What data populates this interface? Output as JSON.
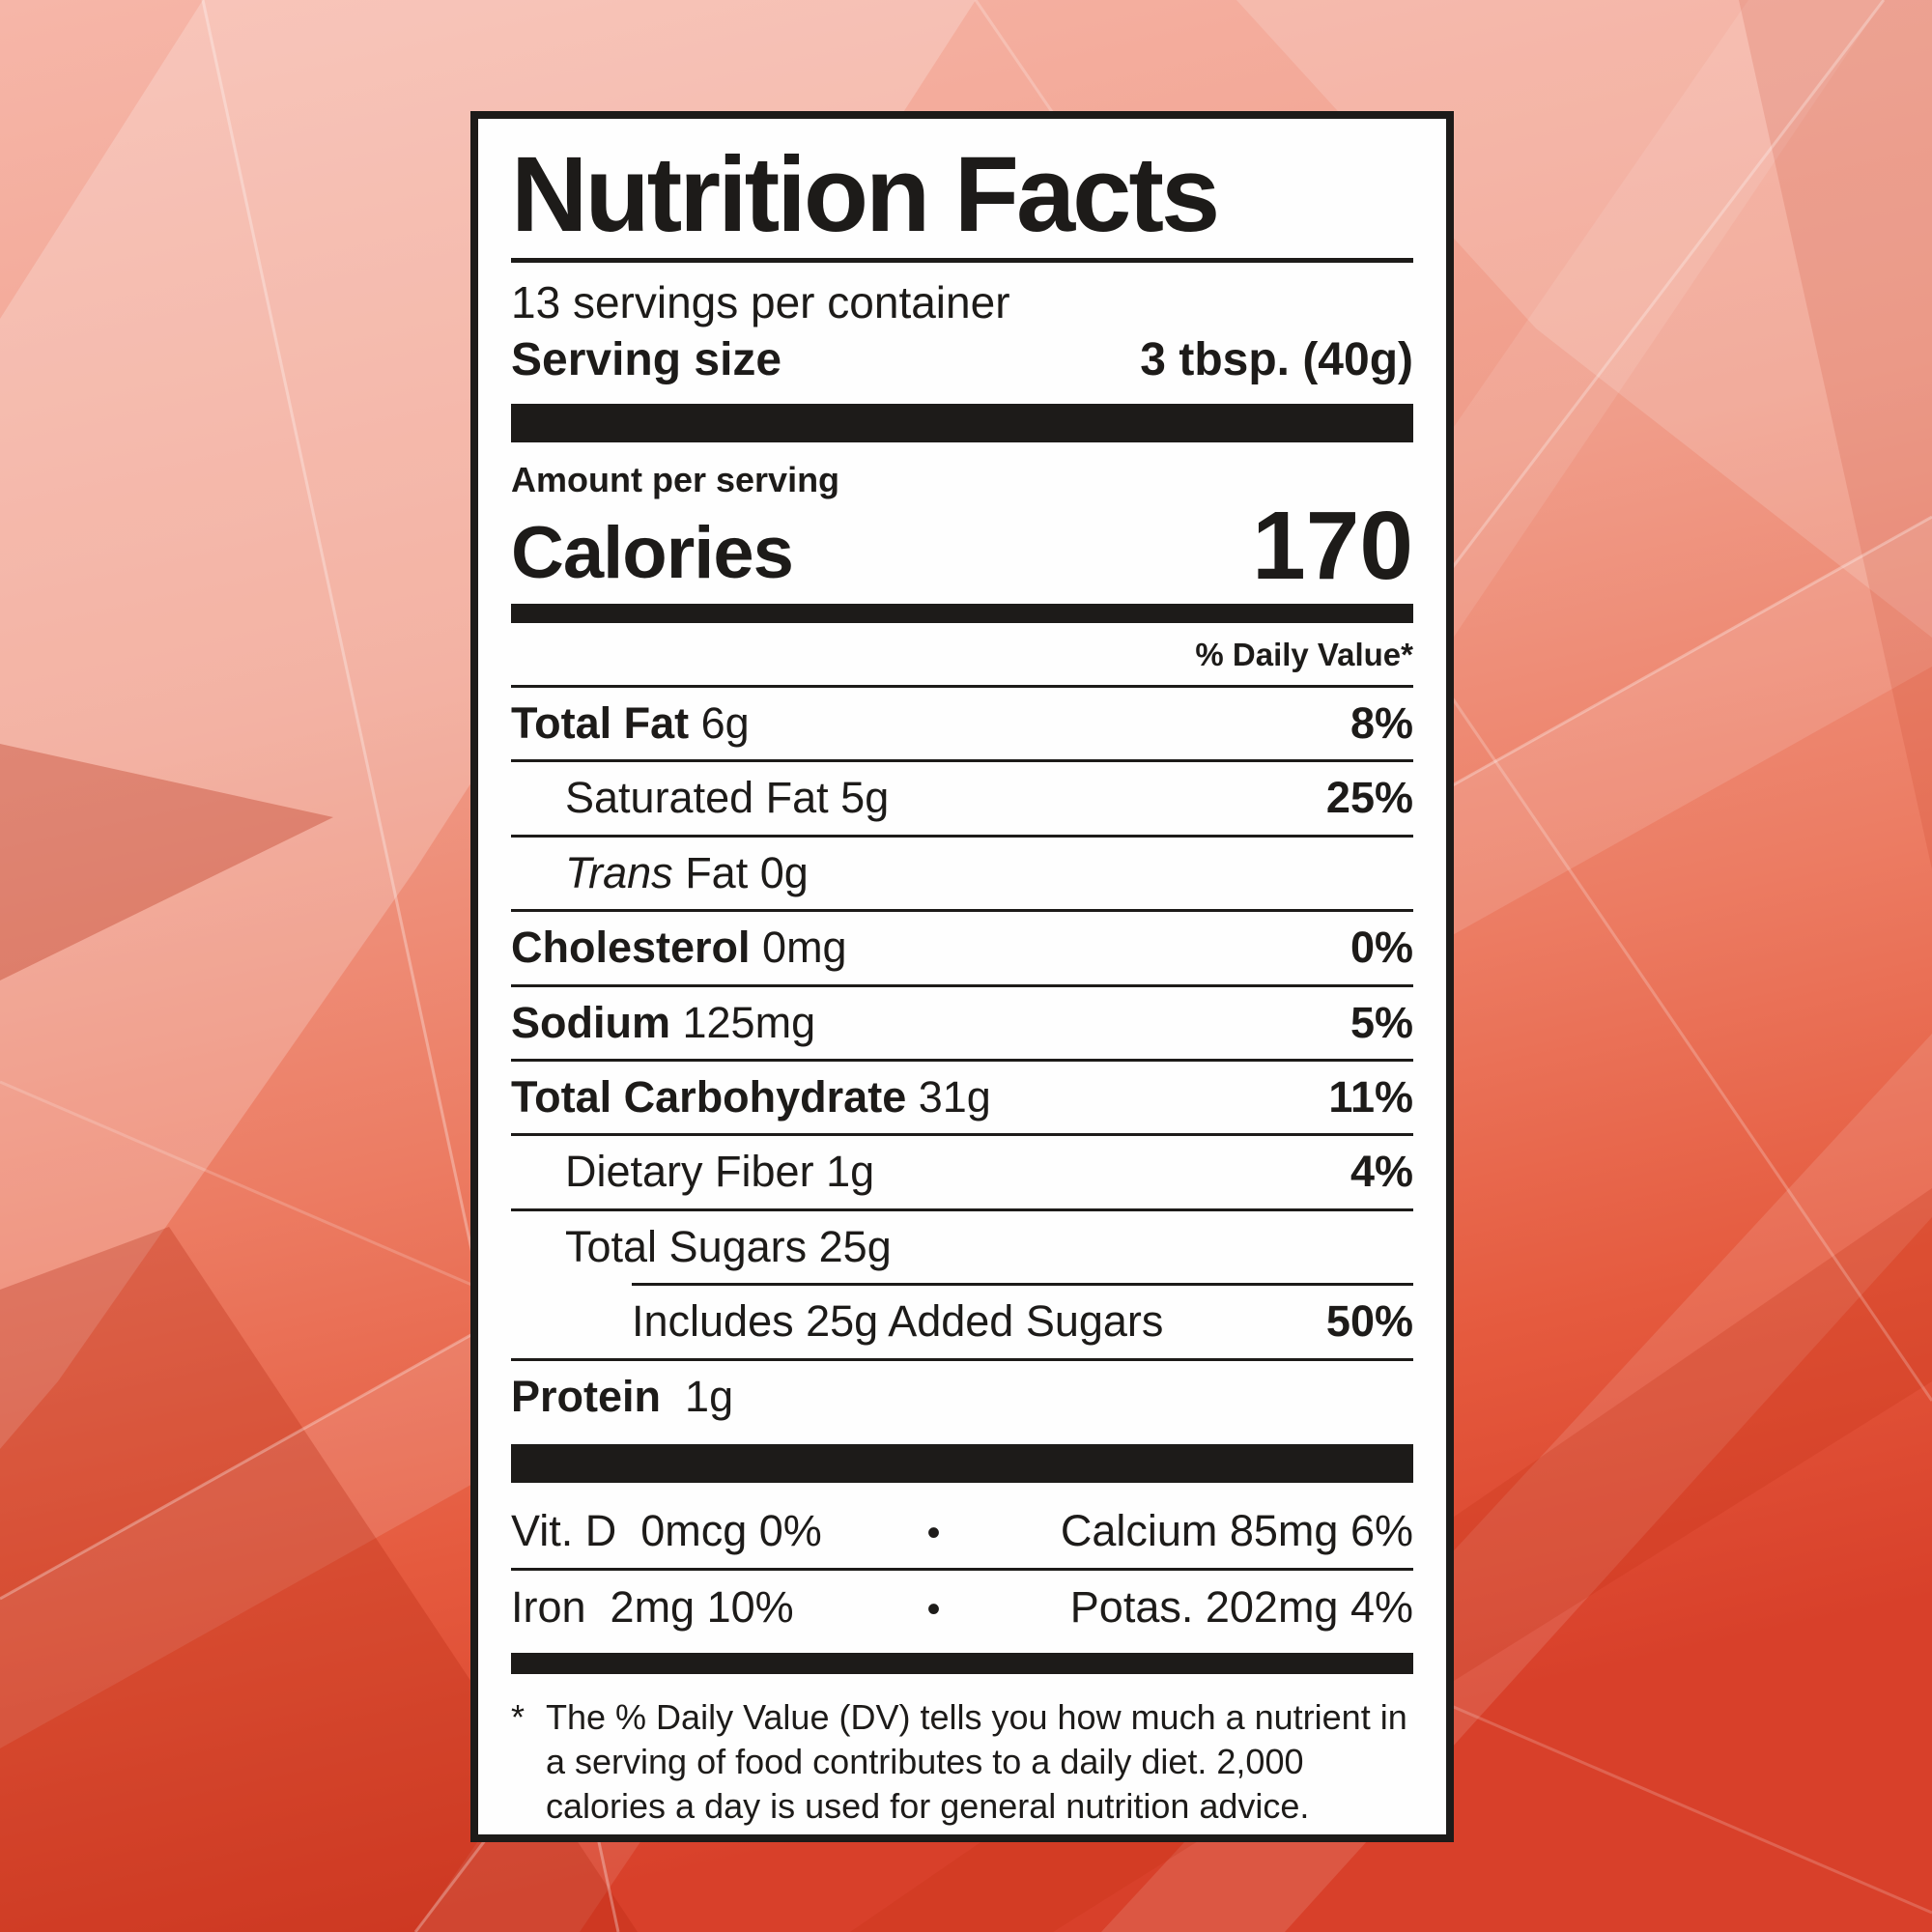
{
  "background": {
    "base_top": "#f6b6a8",
    "base_mid": "#ec7c63",
    "base_bottom": "#d8402a",
    "style": "low-poly geometric coral/red abstract"
  },
  "label": {
    "title": "Nutrition Facts",
    "servings_per_container": "13 servings per container",
    "serving_size": {
      "label": "Serving size",
      "value": "3 tbsp. (40g)"
    },
    "amount_per_serving": "Amount per serving",
    "calories": {
      "label": "Calories",
      "value": "170"
    },
    "daily_value_header": "% Daily Value*",
    "nutrients": [
      {
        "name": "Total Fat",
        "amount": "6g",
        "dv": "8%",
        "bold": true,
        "italic_first_word": false,
        "indent": 0,
        "sep": "full"
      },
      {
        "name": "Saturated Fat",
        "amount": "5g",
        "dv": "25%",
        "bold": false,
        "italic_first_word": false,
        "indent": 1,
        "sep": "full"
      },
      {
        "name": "Trans Fat",
        "amount": "0g",
        "dv": "",
        "bold": false,
        "italic_first_word": true,
        "indent": 1,
        "sep": "full"
      },
      {
        "name": "Cholesterol",
        "amount": "0mg",
        "dv": "0%",
        "bold": true,
        "italic_first_word": false,
        "indent": 0,
        "sep": "full"
      },
      {
        "name": "Sodium",
        "amount": "125mg",
        "dv": "5%",
        "bold": true,
        "italic_first_word": false,
        "indent": 0,
        "sep": "full"
      },
      {
        "name": "Total Carbohydrate",
        "amount": "31g",
        "dv": "11%",
        "bold": true,
        "italic_first_word": false,
        "indent": 0,
        "sep": "full"
      },
      {
        "name": "Dietary Fiber",
        "amount": "1g",
        "dv": "4%",
        "bold": false,
        "italic_first_word": false,
        "indent": 1,
        "sep": "full"
      },
      {
        "name": "Total Sugars",
        "amount": "25g",
        "dv": "",
        "bold": false,
        "italic_first_word": false,
        "indent": 1,
        "sep": "full"
      },
      {
        "name": "Includes 25g Added Sugars",
        "amount": "",
        "dv": "50%",
        "bold": false,
        "italic_first_word": false,
        "indent": 2,
        "sep": "indent"
      },
      {
        "name": "Protein",
        "amount": " 1g",
        "dv": "",
        "bold": true,
        "italic_first_word": false,
        "indent": 0,
        "sep": "full"
      }
    ],
    "micros": [
      {
        "left": "Vit. D  0mcg 0%",
        "bullet": "•",
        "right": "Calcium 85mg 6%"
      },
      {
        "left": "Iron  2mg 10%",
        "bullet": "•",
        "right": "Potas. 202mg 4%"
      }
    ],
    "footnote_marker": "*",
    "footnote": "The % Daily Value (DV) tells you how much a nutrient in a serving of food contributes to a daily diet. 2,000 calories a day is used for general nutrition advice."
  },
  "colors": {
    "ink": "#1d1b19",
    "panel": "#fefefe"
  }
}
